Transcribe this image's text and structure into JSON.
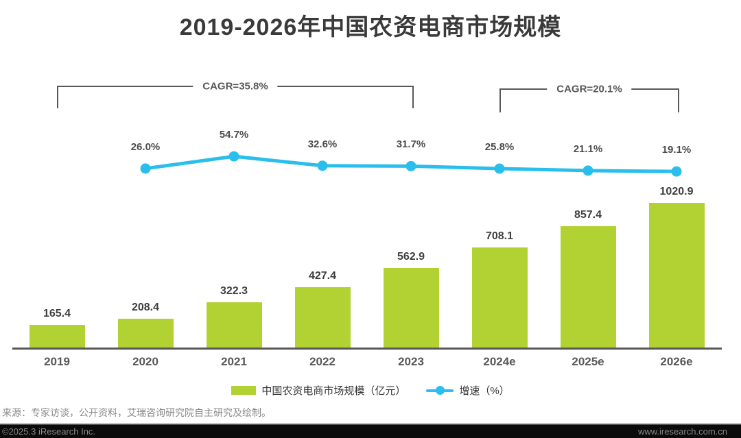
{
  "title": "2019-2026年中国农资电商市场规模",
  "chart_data": {
    "type": "bar",
    "title": "2019-2026年中国农资电商市场规模",
    "categories": [
      "2019",
      "2020",
      "2021",
      "2022",
      "2023",
      "2024e",
      "2025e",
      "2026e"
    ],
    "series": [
      {
        "name": "中国农资电商市场规模（亿元）",
        "type": "bar",
        "values": [
          165.4,
          208.4,
          322.3,
          427.4,
          562.9,
          708.1,
          857.4,
          1020.9
        ],
        "color": "#b2d233"
      },
      {
        "name": "增速（%）",
        "type": "line",
        "categories": [
          "2020",
          "2021",
          "2022",
          "2023",
          "2024e",
          "2025e",
          "2026e"
        ],
        "values": [
          26.0,
          54.7,
          32.6,
          31.7,
          25.8,
          21.1,
          19.1
        ],
        "color": "#29beec"
      }
    ],
    "annotations": [
      {
        "label": "CAGR=35.8%",
        "from": "2019",
        "to": "2023"
      },
      {
        "label": "CAGR=20.1%",
        "from": "2024e",
        "to": "2026e"
      }
    ],
    "ylabel": "亿元",
    "y2label": "%",
    "grid": false,
    "legend_position": "bottom"
  },
  "legend": {
    "bar_label": "中国农资电商市场规模（亿元）",
    "line_label": "增速（%）"
  },
  "footer": {
    "source": "来源：专家访谈，公开资料，艾瑞咨询研究院自主研究及绘制。",
    "copyright": "©2025.3 iResearch Inc.",
    "website": "www.iresearch.com.cn"
  },
  "colors": {
    "bar": "#b2d233",
    "line": "#29beec",
    "title_text": "#3a3a3a",
    "value_text": "#3e3e3e",
    "axis_text": "#595757",
    "bracket": "#5a5858",
    "footer_text": "#898989",
    "footer_bar": "#0b0b0b"
  }
}
